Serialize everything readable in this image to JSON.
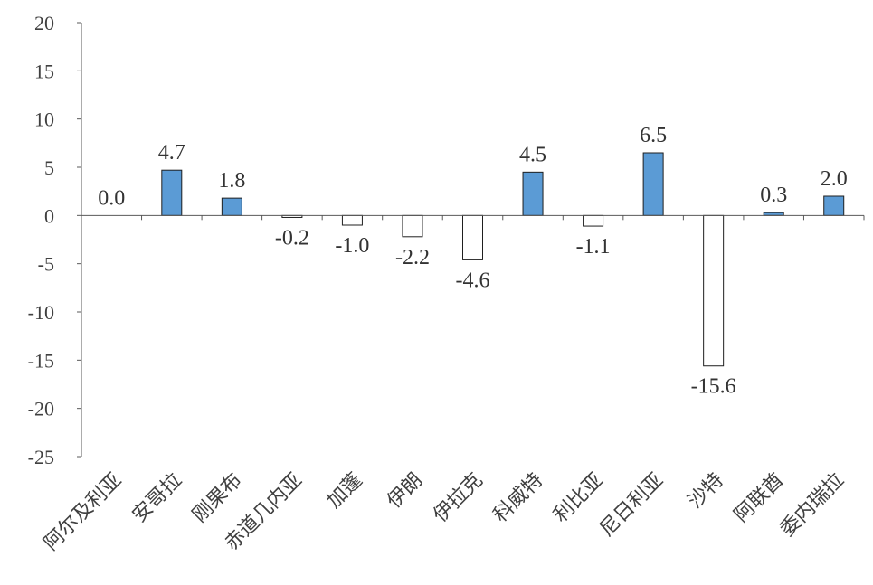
{
  "chart_data": {
    "type": "bar",
    "categories": [
      "阿尔及利亚",
      "安哥拉",
      "刚果布",
      "赤道几内亚",
      "加蓬",
      "伊朗",
      "伊拉克",
      "科威特",
      "利比亚",
      "尼日利亚",
      "沙特",
      "阿联酋",
      "委内瑞拉"
    ],
    "values": [
      0.0,
      4.7,
      1.8,
      -0.2,
      -1.0,
      -2.2,
      -4.6,
      4.5,
      -1.1,
      6.5,
      -15.6,
      0.3,
      2.0
    ],
    "data_labels": [
      "0.0",
      "4.7",
      "1.8",
      "-0.2",
      "-1.0",
      "-2.2",
      "-4.6",
      "4.5",
      "-1.1",
      "6.5",
      "-15.6",
      "0.3",
      "2.0"
    ],
    "yticks": [
      "20",
      "15",
      "10",
      "5",
      "0",
      "-5",
      "-10",
      "-15",
      "-20",
      "-25"
    ],
    "ylim": [
      -25,
      20
    ],
    "title": "",
    "xlabel": "",
    "ylabel": "",
    "grid": false,
    "legend": "none",
    "colors": {
      "positive": "#5b9bd5",
      "negative": "#ffffff",
      "outline": "#1f1f1f"
    }
  }
}
